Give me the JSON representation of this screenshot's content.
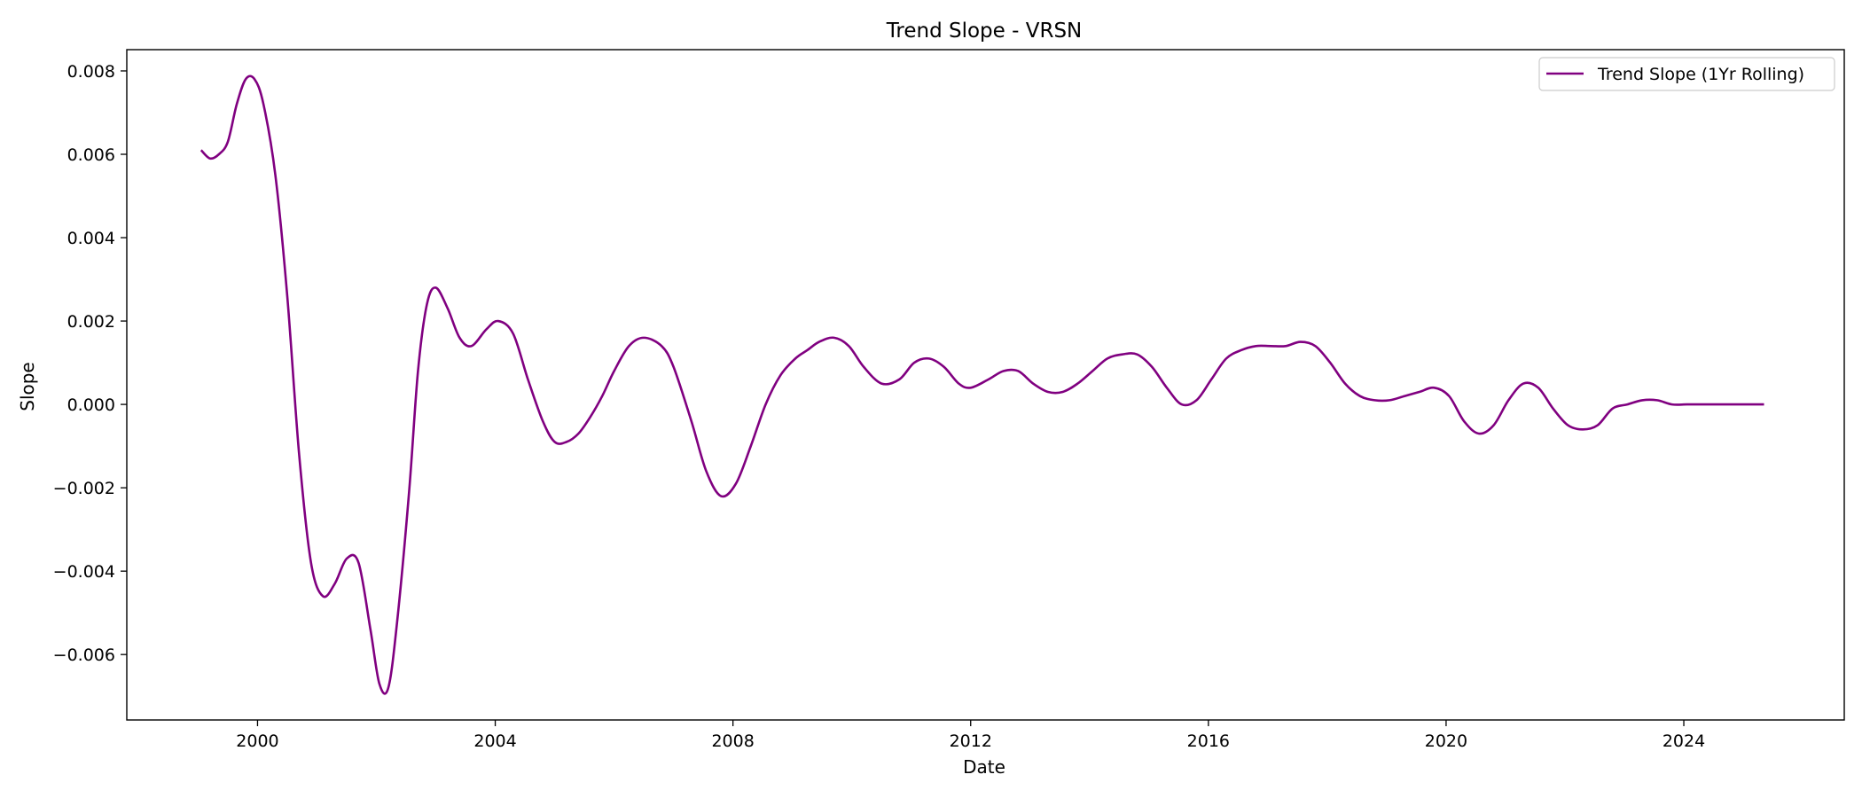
{
  "chart_data": {
    "type": "line",
    "title": "Trend Slope - VRSN",
    "xlabel": "Date",
    "ylabel": "Slope",
    "xlim": [
      1997.8,
      2026.7
    ],
    "ylim": [
      -0.00757,
      0.00851
    ],
    "grid": false,
    "legend_position": "top-right",
    "x_ticks": [
      2000,
      2004,
      2008,
      2012,
      2016,
      2020,
      2024
    ],
    "x_tick_labels": [
      "2000",
      "2004",
      "2008",
      "2012",
      "2016",
      "2020",
      "2024"
    ],
    "y_ticks": [
      -0.006,
      -0.004,
      -0.002,
      0.0,
      0.002,
      0.004,
      0.006,
      0.008
    ],
    "y_tick_labels": [
      "−0.006",
      "−0.004",
      "−0.002",
      "0.000",
      "0.002",
      "0.004",
      "0.006",
      "0.008"
    ],
    "series": [
      {
        "name": "Trend Slope (1Yr Rolling)",
        "color": "#800080",
        "x": [
          1999.05,
          1999.2,
          1999.35,
          1999.5,
          1999.65,
          1999.8,
          1999.95,
          2000.1,
          2000.3,
          2000.5,
          2000.7,
          2000.9,
          2001.1,
          2001.3,
          2001.5,
          2001.7,
          2001.9,
          2002.05,
          2002.2,
          2002.35,
          2002.55,
          2002.7,
          2002.85,
          2003.0,
          2003.2,
          2003.4,
          2003.6,
          2003.85,
          2004.05,
          2004.3,
          2004.55,
          2004.8,
          2005.0,
          2005.2,
          2005.4,
          2005.6,
          2005.8,
          2006.0,
          2006.25,
          2006.5,
          2006.8,
          2007.0,
          2007.3,
          2007.55,
          2007.8,
          2008.05,
          2008.3,
          2008.55,
          2008.8,
          2009.05,
          2009.25,
          2009.45,
          2009.7,
          2009.95,
          2010.2,
          2010.5,
          2010.8,
          2011.05,
          2011.3,
          2011.55,
          2011.8,
          2012.0,
          2012.3,
          2012.55,
          2012.8,
          2013.05,
          2013.3,
          2013.55,
          2013.8,
          2014.05,
          2014.3,
          2014.55,
          2014.8,
          2015.05,
          2015.3,
          2015.55,
          2015.8,
          2016.05,
          2016.3,
          2016.55,
          2016.8,
          2017.05,
          2017.3,
          2017.55,
          2017.8,
          2018.05,
          2018.3,
          2018.55,
          2018.8,
          2019.05,
          2019.3,
          2019.55,
          2019.8,
          2020.05,
          2020.3,
          2020.55,
          2020.8,
          2021.05,
          2021.3,
          2021.55,
          2021.8,
          2022.05,
          2022.3,
          2022.55,
          2022.8,
          2023.05,
          2023.3,
          2023.55,
          2023.8,
          2024.05,
          2024.3,
          2024.55,
          2024.75,
          2024.95,
          2025.15,
          2025.35
        ],
        "y": [
          0.0061,
          0.0059,
          0.006,
          0.0063,
          0.0072,
          0.0078,
          0.0078,
          0.0072,
          0.0055,
          0.0026,
          -0.0012,
          -0.0038,
          -0.0046,
          -0.0043,
          -0.0037,
          -0.0038,
          -0.0054,
          -0.0067,
          -0.0068,
          -0.0052,
          -0.0021,
          0.0008,
          0.0024,
          0.0028,
          0.0023,
          0.0016,
          0.0014,
          0.0018,
          0.002,
          0.0017,
          0.0006,
          -0.0004,
          -0.0009,
          -0.0009,
          -0.0007,
          -0.0003,
          0.0002,
          0.0008,
          0.0014,
          0.0016,
          0.0014,
          0.0009,
          -0.0004,
          -0.0016,
          -0.0022,
          -0.0019,
          -0.001,
          0.0,
          0.0007,
          0.0011,
          0.0013,
          0.0015,
          0.0016,
          0.0014,
          0.0009,
          0.0005,
          0.0006,
          0.001,
          0.0011,
          0.0009,
          0.0005,
          0.0004,
          0.0006,
          0.0008,
          0.0008,
          0.0005,
          0.0003,
          0.0003,
          0.0005,
          0.0008,
          0.0011,
          0.0012,
          0.0012,
          0.0009,
          0.0004,
          0.0,
          0.0001,
          0.0006,
          0.0011,
          0.0013,
          0.0014,
          0.0014,
          0.0014,
          0.0015,
          0.0014,
          0.001,
          0.0005,
          0.0002,
          0.0001,
          0.0001,
          0.0002,
          0.0003,
          0.0004,
          0.0002,
          -0.0004,
          -0.0007,
          -0.0005,
          0.0001,
          0.0005,
          0.0004,
          -0.0001,
          -0.0005,
          -0.0006,
          -0.0005,
          -0.0001,
          0.0,
          0.0001,
          0.0001,
          0.0,
          0.0,
          0.0,
          0.0,
          0.0,
          0.0,
          0.0,
          0.0
        ]
      }
    ]
  }
}
